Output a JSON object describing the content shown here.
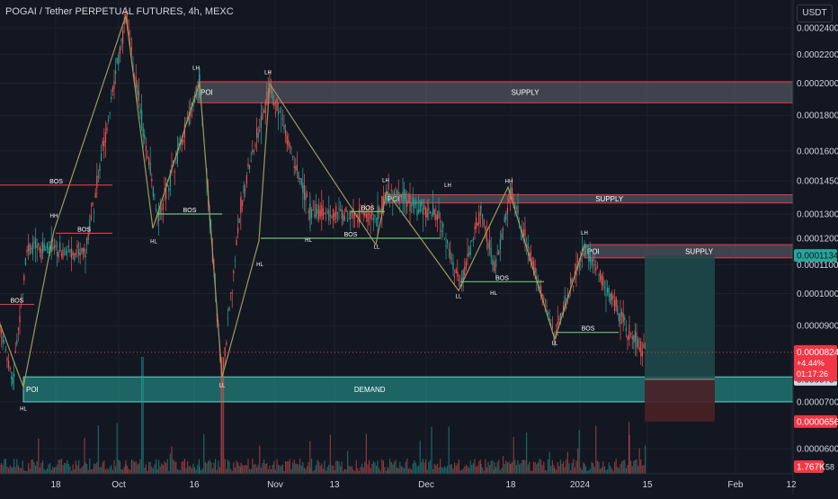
{
  "header": {
    "title": "POGAI / Tether PERPETUAL FUTURES, 4h, MEXC",
    "currency": "USDT"
  },
  "colors": {
    "background": "#131722",
    "grid": "#1e222d",
    "text": "#d1d4dc",
    "candle_up": "#26a69a",
    "candle_down": "#ef5350",
    "zigzag": "#9c9a5a",
    "supply": "#787b86",
    "demand": "#26a69a",
    "bos_red": "#f23645",
    "bos_green": "#6fbf73",
    "price_tag": "#f23645",
    "target_zone": "#1f4b4b",
    "stop_zone": "#4a2025"
  },
  "chart_data": {
    "type": "candlestick",
    "title": "POGAI / Tether PERPETUAL FUTURES, 4h, MEXC",
    "y_axis": {
      "ticks": [
        "0.0002400",
        "0.0002200",
        "0.0002000",
        "0.0001800",
        "0.0001600",
        "0.0001450",
        "0.0001300",
        "0.0001200",
        "0.0001100",
        "0.0001000",
        "0.0000900",
        "0.0000700",
        "0.0000600"
      ],
      "scale": "log"
    },
    "x_axis": {
      "ticks": [
        "18",
        "Oct",
        "16",
        "Nov",
        "13",
        "Dec",
        "18",
        "2024",
        "15",
        "Feb",
        "12"
      ]
    },
    "price_segments": [
      {
        "from": 0,
        "to": 14,
        "start": 9e-05,
        "end": 7.45e-05
      },
      {
        "from": 14,
        "to": 30,
        "start": 7.45e-05,
        "end": 0.000116
      },
      {
        "from": 30,
        "to": 95,
        "start": 0.000116,
        "end": 0.000115
      },
      {
        "from": 95,
        "to": 140,
        "start": 0.000115,
        "end": 0.00025
      },
      {
        "from": 140,
        "to": 175,
        "start": 0.00025,
        "end": 0.000128
      },
      {
        "from": 175,
        "to": 222,
        "start": 0.000128,
        "end": 0.0002
      },
      {
        "from": 222,
        "to": 247,
        "start": 0.0002,
        "end": 7.6e-05
      },
      {
        "from": 247,
        "to": 268,
        "start": 7.6e-05,
        "end": 0.000135
      },
      {
        "from": 268,
        "to": 300,
        "start": 0.000135,
        "end": 0.000199
      },
      {
        "from": 300,
        "to": 345,
        "start": 0.000199,
        "end": 0.000131
      },
      {
        "from": 345,
        "to": 420,
        "start": 0.000131,
        "end": 0.000129
      },
      {
        "from": 420,
        "to": 432,
        "start": 0.000129,
        "end": 0.00014
      },
      {
        "from": 432,
        "to": 488,
        "start": 0.00014,
        "end": 0.000129
      },
      {
        "from": 488,
        "to": 512,
        "start": 0.000129,
        "end": 0.000102
      },
      {
        "from": 512,
        "to": 535,
        "start": 0.000102,
        "end": 0.000132
      },
      {
        "from": 535,
        "to": 550,
        "start": 0.000132,
        "end": 0.000108
      },
      {
        "from": 550,
        "to": 568,
        "start": 0.000108,
        "end": 0.00014
      },
      {
        "from": 568,
        "to": 617,
        "start": 0.00014,
        "end": 8.7e-05
      },
      {
        "from": 617,
        "to": 650,
        "start": 8.7e-05,
        "end": 0.000117
      },
      {
        "from": 650,
        "to": 700,
        "start": 0.000117,
        "end": 8.8e-05
      },
      {
        "from": 700,
        "to": 718,
        "start": 8.8e-05,
        "end": 8.24e-05
      }
    ],
    "zones": [
      {
        "type": "SUPPLY",
        "label": "SUPPLY",
        "poi_label": "POI",
        "top": 0.000201,
        "bottom": 0.0001875,
        "x_start": 220
      },
      {
        "type": "SUPPLY",
        "label": "SUPPLY",
        "poi_label": "POI",
        "top": 0.0001385,
        "bottom": 0.0001348,
        "x_start": 428
      },
      {
        "type": "SUPPLY",
        "label": "SUPPLY",
        "poi_label": "POI",
        "top": 0.0001175,
        "bottom": 0.0001125,
        "x_start": 650
      },
      {
        "type": "DEMAND",
        "label": "DEMAND",
        "poi_label": "POI",
        "top": 7.6e-05,
        "bottom": 7e-05,
        "x_start": 26
      }
    ],
    "zigzag": [
      {
        "x": 0,
        "price": 9.05e-05
      },
      {
        "x": 26,
        "price": 7.35e-05
      },
      {
        "x": 60,
        "price": 0.000123
      },
      {
        "x": 140,
        "price": 0.00025
      },
      {
        "x": 170,
        "price": 0.000124
      },
      {
        "x": 222,
        "price": 0.0002005
      },
      {
        "x": 247,
        "price": 7.6e-05
      },
      {
        "x": 288,
        "price": 0.000119
      },
      {
        "x": 300,
        "price": 0.0001995
      },
      {
        "x": 418,
        "price": 0.0001175
      },
      {
        "x": 430,
        "price": 0.00014
      },
      {
        "x": 510,
        "price": 0.000101
      },
      {
        "x": 565,
        "price": 0.000142
      },
      {
        "x": 617,
        "price": 8.6e-05
      },
      {
        "x": 650,
        "price": 0.0001175
      }
    ],
    "structure_labels": [
      {
        "text": "HL",
        "x": 26,
        "price": 6.8e-05
      },
      {
        "text": "HH",
        "x": 60,
        "price": 0.0001285
      },
      {
        "text": "HL",
        "x": 171,
        "price": 0.000118
      },
      {
        "text": "LH",
        "x": 218,
        "price": 0.000209
      },
      {
        "text": "LL",
        "x": 247,
        "price": 7.35e-05
      },
      {
        "text": "HL",
        "x": 289,
        "price": 0.0001095
      },
      {
        "text": "LH",
        "x": 298,
        "price": 0.000206
      },
      {
        "text": "HL",
        "x": 343,
        "price": 0.0001185
      },
      {
        "text": "LL",
        "x": 419,
        "price": 0.000116
      },
      {
        "text": "LH",
        "x": 429,
        "price": 0.0001445
      },
      {
        "text": "LH",
        "x": 498,
        "price": 0.000142
      },
      {
        "text": "LL",
        "x": 510,
        "price": 9.85e-05
      },
      {
        "text": "HL",
        "x": 549,
        "price": 9.95e-05
      },
      {
        "text": "HH",
        "x": 566,
        "price": 0.000144
      },
      {
        "text": "LL",
        "x": 617,
        "price": 8.45e-05
      },
      {
        "text": "LH",
        "x": 650,
        "price": 0.0001215
      }
    ],
    "bos_lines": [
      {
        "label": "BOS",
        "price": 9.65e-05,
        "x1": 0,
        "x2": 38,
        "color": "red"
      },
      {
        "label": "BOS",
        "price": 0.000122,
        "x1": 62,
        "x2": 125,
        "color": "red"
      },
      {
        "label": "BOS",
        "price": 0.000143,
        "x1": 0,
        "x2": 125,
        "color": "red"
      },
      {
        "label": "BOS",
        "price": 0.00013,
        "x1": 175,
        "x2": 247,
        "color": "green"
      },
      {
        "label": "BOS",
        "price": 0.00012,
        "x1": 290,
        "x2": 490,
        "color": "green"
      },
      {
        "label": "BOS",
        "price": 0.000131,
        "x1": 390,
        "x2": 428,
        "color": "green"
      },
      {
        "label": "BOS",
        "price": 0.000104,
        "x1": 512,
        "x2": 605,
        "color": "green"
      },
      {
        "label": "BOS",
        "price": 8.8e-05,
        "x1": 620,
        "x2": 688,
        "color": "green"
      }
    ],
    "position": {
      "entry": 7.54e-05,
      "target": 0.0001134,
      "stop": 6.56e-05,
      "x1": 717,
      "x2": 795
    },
    "last_price": {
      "value": "0.0000824",
      "change": "+4.44%",
      "countdown": "01:17:26"
    },
    "price_tags": [
      {
        "value": "0.0001134",
        "price": 0.0001134,
        "color": "#26a69a",
        "text_color": "#131722"
      },
      {
        "value": "0.0000754",
        "price": 7.54e-05,
        "color": "#d1d4dc",
        "text_color": "#131722"
      },
      {
        "value": "0.0000656",
        "price": 6.56e-05,
        "color": "#f23645",
        "text_color": "#ffffff"
      }
    ],
    "volume_tag": "1.767K",
    "volume_suffix": "58"
  }
}
